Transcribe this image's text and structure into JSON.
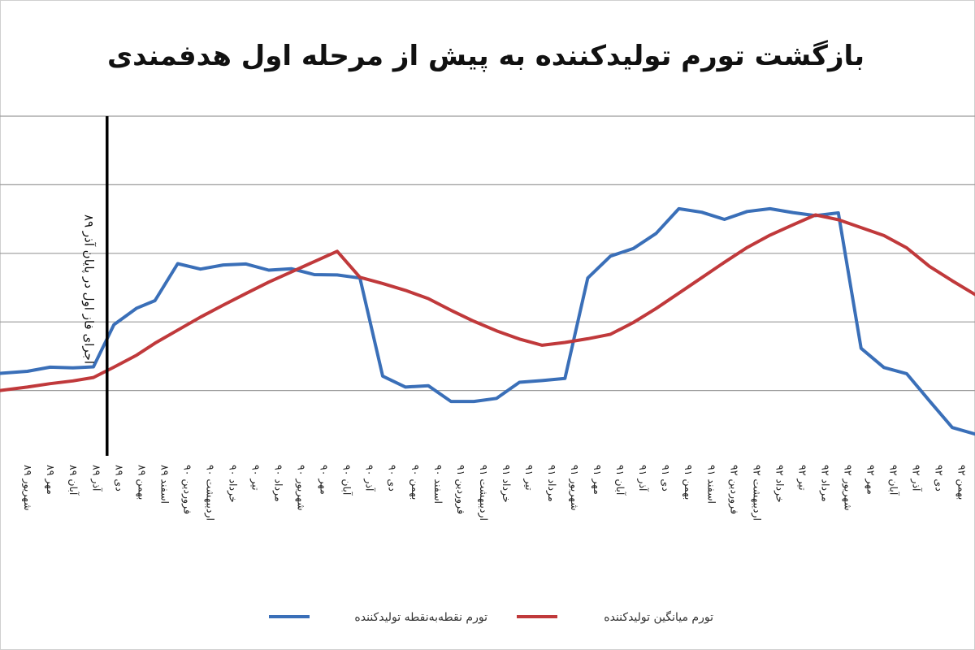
{
  "chart_data": {
    "type": "line",
    "title": "بازگشت تورم تولیدکننده به پیش از مرحله اول هدفمندی",
    "xlabel": "",
    "ylabel": "",
    "categories": [
      "شهریور ۸۹",
      "مهر ۸۹",
      "آبان ۸۹",
      "آذر ۸۹",
      "دی ۸۹",
      "بهمن ۸۹",
      "اسفند ۸۹",
      "فروردین ۹۰",
      "اردیبهشت ۹۰",
      "خرداد ۹۰",
      "تیر ۹۰",
      "مرداد ۹۰",
      "شهریور ۹۰",
      "مهر ۹۰",
      "آبان ۹۰",
      "آذر ۹۰",
      "دی ۹۰",
      "بهمن ۹۰",
      "اسفند ۹۰",
      "فروردین ۹۱",
      "اردیبهشت ۹۱",
      "خرداد ۹۱",
      "تیر ۹۱",
      "مرداد ۹۱",
      "شهریور ۹۱",
      "مهر ۹۱",
      "آبان ۹۱",
      "آذر ۹۱",
      "دی ۹۱",
      "بهمن ۹۱",
      "اسفند ۹۱",
      "فروردین ۹۲",
      "اردیبهشت ۹۲",
      "خرداد ۹۲",
      "تیر ۹۲",
      "مرداد ۹۲",
      "شهریور ۹۲",
      "مهر ۹۲",
      "آبان ۹۲",
      "آذر ۹۲",
      "دی ۹۲",
      "بهمن ۹۲"
    ],
    "x": [
      0,
      1,
      2,
      3,
      4,
      5,
      6,
      7,
      8,
      9,
      10,
      11,
      12,
      13,
      14,
      15,
      16,
      17,
      18,
      19,
      20,
      21,
      22,
      23,
      24,
      25,
      26,
      27,
      28,
      29,
      30,
      31,
      32,
      33,
      34,
      35,
      36,
      37,
      38,
      39,
      40,
      41
    ],
    "series": [
      {
        "name": "تورم نقطه‌به‌نقطه تولیدکننده",
        "color": "#3a6fb8",
        "x": [
          -1.2,
          0,
          1,
          2,
          2.9,
          3.8,
          4.8,
          5.6,
          6.6,
          7.6,
          8.6,
          9.6,
          10.6,
          11.6,
          12.6,
          13.6,
          14.6,
          15.6,
          16.6,
          17.6,
          18.6,
          19.6,
          20.6,
          21.6,
          22.6,
          23.6,
          24.6,
          25.6,
          26.6,
          27.6,
          28.6,
          29.6,
          30.6,
          31.6,
          32.6,
          33.6,
          34.6,
          35.6,
          36.6,
          37.6,
          38.6,
          39.6,
          40.6,
          41.6,
          43.6
        ],
        "values": [
          5,
          5.6,
          6.8,
          6.6,
          6.9,
          19.2,
          24,
          26.2,
          37,
          35.4,
          36.6,
          36.9,
          35.1,
          35.5,
          33.8,
          33.7,
          32.8,
          4.2,
          1,
          1.4,
          -3.2,
          -3.2,
          -2.3,
          2.4,
          2.9,
          3.5,
          32.8,
          39.2,
          41.4,
          45.8,
          53,
          52,
          49.9,
          52.2,
          53,
          51.9,
          51,
          51.8,
          12.3,
          6.7,
          4.9,
          -3,
          -10.8,
          -12.7,
          -9.5
        ]
      },
      {
        "name": "تورم میانگین تولیدکننده",
        "color": "#c0393b",
        "x": [
          -1.2,
          0,
          1,
          2,
          2.9,
          3.8,
          4.8,
          5.6,
          6.6,
          7.6,
          8.6,
          9.6,
          10.6,
          11.6,
          12.6,
          13.6,
          14.6,
          15.6,
          16.6,
          17.6,
          18.6,
          19.6,
          20.6,
          21.6,
          22.6,
          23.6,
          24.6,
          25.6,
          26.6,
          27.6,
          28.6,
          29.6,
          30.6,
          31.6,
          32.6,
          33.6,
          34.6,
          35.6,
          36.6,
          37.6,
          38.6,
          39.6,
          40.6,
          41.6,
          43.6
        ],
        "values": [
          0,
          1,
          2,
          2.8,
          3.8,
          6.8,
          10.3,
          13.8,
          17.6,
          21.4,
          24.9,
          28.3,
          31.6,
          34.6,
          37.6,
          40.6,
          33,
          31.2,
          29.2,
          26.8,
          23.4,
          20.2,
          17.4,
          15,
          13.2,
          14,
          15.1,
          16.4,
          19.8,
          23.9,
          28.4,
          32.9,
          37.4,
          41.7,
          45.3,
          48.3,
          51.2,
          49.8,
          47.5,
          45.2,
          41.6,
          36.2,
          32,
          28,
          24
        ]
      }
    ],
    "xlim": [
      -1.2,
      41.6
    ],
    "ylim": [
      -20,
      80
    ],
    "yticks": [
      -20,
      0,
      20,
      40,
      60,
      80
    ],
    "grid": true,
    "legend": "bottom",
    "annotation": {
      "at_x": 3.5,
      "text": "اجرای فاز اول  در پایان آذر ۸۹"
    }
  }
}
